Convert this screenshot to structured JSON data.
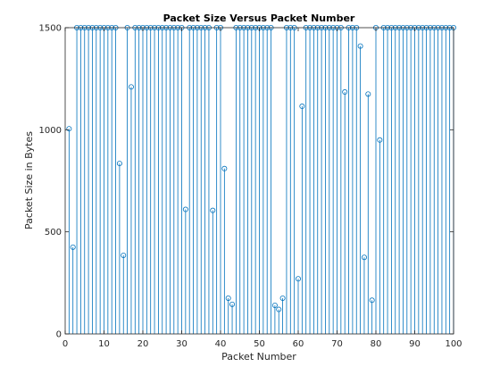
{
  "chart_data": {
    "type": "stem",
    "title": "Packet Size Versus Packet Number",
    "xlabel": "Packet Number",
    "ylabel": "Packet Size in Bytes",
    "xlim": [
      0,
      100
    ],
    "ylim": [
      0,
      1500
    ],
    "xticks": [
      0,
      10,
      20,
      30,
      40,
      50,
      60,
      70,
      80,
      90,
      100
    ],
    "yticks": [
      0,
      500,
      1000,
      1500
    ],
    "grid": false,
    "legend": "none",
    "marker": "circle",
    "color": "#0072BD",
    "x": [
      1,
      2,
      3,
      4,
      5,
      6,
      7,
      8,
      9,
      10,
      11,
      12,
      13,
      14,
      15,
      16,
      17,
      18,
      19,
      20,
      21,
      22,
      23,
      24,
      25,
      26,
      27,
      28,
      29,
      30,
      31,
      32,
      33,
      34,
      35,
      36,
      37,
      38,
      39,
      40,
      41,
      42,
      43,
      44,
      45,
      46,
      47,
      48,
      49,
      50,
      51,
      52,
      53,
      54,
      55,
      56,
      57,
      58,
      59,
      60,
      61,
      62,
      63,
      64,
      65,
      66,
      67,
      68,
      69,
      70,
      71,
      72,
      73,
      74,
      75,
      76,
      77,
      78,
      79,
      80,
      81,
      82,
      83,
      84,
      85,
      86,
      87,
      88,
      89,
      90,
      91,
      92,
      93,
      94,
      95,
      96,
      97,
      98,
      99,
      100
    ],
    "values": [
      1005,
      425,
      1500,
      1500,
      1500,
      1500,
      1500,
      1500,
      1500,
      1500,
      1500,
      1500,
      1500,
      835,
      385,
      1500,
      1210,
      1500,
      1500,
      1500,
      1500,
      1500,
      1500,
      1500,
      1500,
      1500,
      1500,
      1500,
      1500,
      1500,
      610,
      1500,
      1500,
      1500,
      1500,
      1500,
      1500,
      605,
      1500,
      1500,
      810,
      175,
      145,
      1500,
      1500,
      1500,
      1500,
      1500,
      1500,
      1500,
      1500,
      1500,
      1500,
      140,
      120,
      175,
      1500,
      1500,
      1500,
      270,
      1115,
      1500,
      1500,
      1500,
      1500,
      1500,
      1500,
      1500,
      1500,
      1500,
      1500,
      1185,
      1500,
      1500,
      1500,
      1410,
      375,
      1175,
      165,
      1500,
      950,
      1500,
      1500,
      1500,
      1500,
      1500,
      1500,
      1500,
      1500,
      1500,
      1500,
      1500,
      1500,
      1500,
      1500,
      1500,
      1500,
      1500,
      1500,
      1500
    ]
  }
}
